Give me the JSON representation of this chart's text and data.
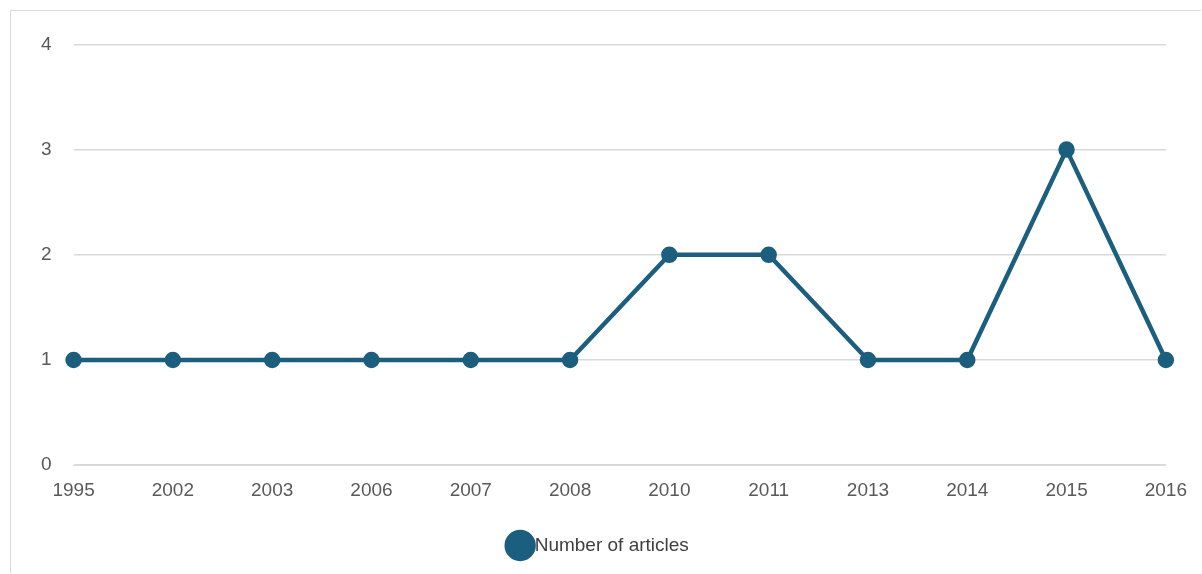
{
  "chart_data": {
    "type": "line",
    "categories": [
      "1995",
      "2002",
      "2003",
      "2006",
      "2007",
      "2008",
      "2010",
      "2011",
      "2013",
      "2014",
      "2015",
      "2016"
    ],
    "series": [
      {
        "name": "Number of articles",
        "color": "#1b5e7e",
        "values": [
          1,
          1,
          1,
          1,
          1,
          1,
          2,
          2,
          1,
          1,
          3,
          1
        ]
      }
    ],
    "ylim": [
      0,
      4
    ],
    "yticks": [
      0,
      1,
      2,
      3,
      4
    ],
    "grid": "y",
    "legend": "bottom",
    "marker": "circle"
  }
}
